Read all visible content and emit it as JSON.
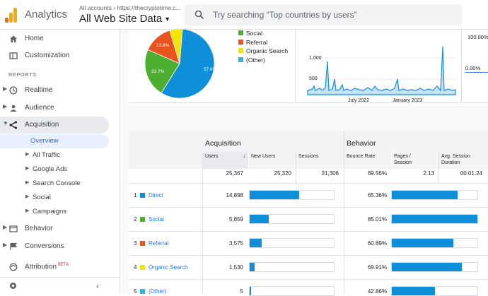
{
  "header": {
    "app_name": "Analytics",
    "breadcrumb": "All accounts › https://thecryptotime.c...",
    "view_name": "All Web Site Data",
    "search_placeholder": "Try searching “Top countries by users”"
  },
  "sidebar": {
    "home": "Home",
    "customization": "Customization",
    "reports_label": "REPORTS",
    "realtime": "Realtime",
    "audience": "Audience",
    "acquisition": "Acquisition",
    "acq_items": [
      "Overview",
      "All Traffic",
      "Google Ads",
      "Search Console",
      "Social",
      "Campaigns"
    ],
    "behavior": "Behavior",
    "conversions": "Conversions",
    "attribution": "Attribution",
    "beta": "BETA"
  },
  "overview": {
    "pie_labels": [
      "57.6%",
      "22.7%",
      "13.8%"
    ],
    "legend": [
      {
        "label": "Social",
        "color": "#4caf2f"
      },
      {
        "label": "Referral",
        "color": "#e8531f"
      },
      {
        "label": "Organic Search",
        "color": "#f2e500"
      },
      {
        "label": "(Other)",
        "color": "#2fb7e0"
      }
    ],
    "spark_ticks_y": [
      "1,000",
      "500"
    ],
    "spark_ticks_x": [
      "July 2022",
      "January 2023"
    ],
    "right_pct_top": "100.00%",
    "right_pct_mid": "0.00%"
  },
  "table": {
    "group_acq": "Acquisition",
    "group_beh": "Behavior",
    "cols": {
      "users": "Users",
      "sort": "↓",
      "new_users": "New Users",
      "sessions": "Sessions",
      "bounce": "Bounce Rate",
      "pages_1": "Pages /",
      "pages_2": "Session",
      "dur_1": "Avg. Session",
      "dur_2": "Duration"
    },
    "totals": {
      "users": "25,367",
      "new_users": "25,320",
      "sessions": "31,306",
      "bounce": "69.56%",
      "pages": "2.13",
      "duration": "00:01:24"
    },
    "rows": [
      {
        "num": "1",
        "channel": "Direct",
        "color": "#0f8fd8",
        "users": "14,898",
        "bounce": "65.36%",
        "session_share": 0.59,
        "bounce_share": 0.77
      },
      {
        "num": "2",
        "channel": "Social",
        "color": "#4caf2f",
        "users": "5,859",
        "bounce": "85.01%",
        "session_share": 0.23,
        "bounce_share": 1.0
      },
      {
        "num": "3",
        "channel": "Referral",
        "color": "#e8531f",
        "users": "3,575",
        "bounce": "60.89%",
        "session_share": 0.14,
        "bounce_share": 0.72
      },
      {
        "num": "4",
        "channel": "Organic Search",
        "color": "#f2e500",
        "users": "1,530",
        "bounce": "69.91%",
        "session_share": 0.06,
        "bounce_share": 0.82
      },
      {
        "num": "5",
        "channel": "(Other)",
        "color": "#2fb7e0",
        "users": "5",
        "bounce": "42.86%",
        "session_share": 0.01,
        "bounce_share": 0.5
      }
    ]
  }
}
